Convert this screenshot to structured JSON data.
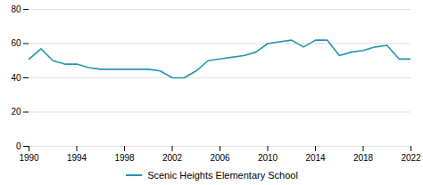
{
  "chart_data": {
    "type": "line",
    "x": [
      1990,
      1991,
      1992,
      1993,
      1994,
      1995,
      1996,
      1997,
      1998,
      1999,
      2000,
      2001,
      2002,
      2003,
      2004,
      2005,
      2006,
      2007,
      2008,
      2009,
      2010,
      2011,
      2012,
      2013,
      2014,
      2015,
      2016,
      2017,
      2018,
      2019,
      2020,
      2021,
      2022
    ],
    "series": [
      {
        "name": "Scenic Heights Elementary School",
        "color": "#2196b0",
        "values": [
          51,
          57,
          50,
          48,
          48,
          46,
          45,
          45,
          45,
          45,
          45,
          44,
          40,
          40,
          44,
          50,
          51,
          52,
          53,
          55,
          60,
          61,
          62,
          58,
          62,
          62,
          53,
          55,
          56,
          58,
          59,
          51,
          51
        ]
      }
    ],
    "xlim": [
      1990,
      2022
    ],
    "xticks": [
      1990,
      1994,
      1998,
      2002,
      2006,
      2010,
      2014,
      2018,
      2022
    ],
    "ylim": [
      0,
      80
    ],
    "yticks": [
      0,
      20,
      40,
      60,
      80
    ],
    "grid": true,
    "legend": "bottom"
  }
}
